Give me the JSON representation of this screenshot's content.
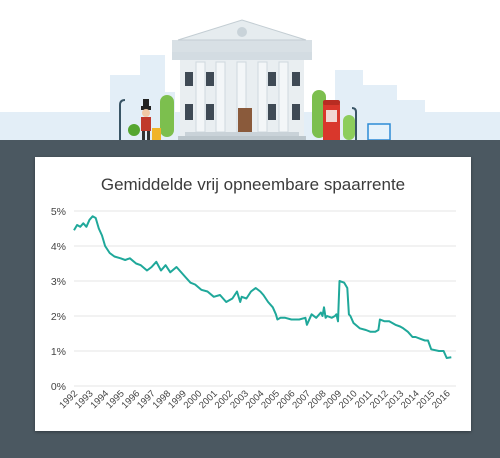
{
  "chart_data": {
    "type": "line",
    "title": "Gemiddelde vrij opneembare spaarrente",
    "xlabel": "",
    "ylabel": "",
    "ylim": [
      0,
      5
    ],
    "xlim": [
      1992,
      2016.6
    ],
    "y_ticks": [
      "0%",
      "1%",
      "2%",
      "3%",
      "4%",
      "5%"
    ],
    "x_ticks": [
      "1992",
      "1993",
      "1994",
      "1995",
      "1996",
      "1997",
      "1998",
      "1999",
      "2000",
      "2001",
      "2002",
      "2003",
      "2004",
      "2005",
      "2006",
      "2007",
      "2008",
      "2009",
      "2010",
      "2011",
      "2012",
      "2013",
      "2014",
      "2015",
      "2016"
    ],
    "grid": "horizontal",
    "series": [
      {
        "color": "#1fa89a",
        "x": [
          1992.0,
          1992.2,
          1992.4,
          1992.6,
          1992.8,
          1993.0,
          1993.2,
          1993.4,
          1993.6,
          1993.8,
          1994.0,
          1994.3,
          1994.6,
          1995.0,
          1995.3,
          1995.6,
          1996.0,
          1996.3,
          1996.7,
          1997.0,
          1997.3,
          1997.6,
          1997.9,
          1998.2,
          1998.6,
          1999.0,
          1999.2,
          1999.5,
          1999.8,
          2000.2,
          2000.6,
          2001.0,
          2001.4,
          2001.8,
          2002.2,
          2002.5,
          2002.7,
          2002.8,
          2003.1,
          2003.4,
          2003.7,
          2004.0,
          2004.2,
          2004.5,
          2004.8,
          2005.0,
          2005.1,
          2005.3,
          2005.6,
          2006.0,
          2006.5,
          2006.9,
          2007.0,
          2007.3,
          2007.6,
          2007.9,
          2008.0,
          2008.1,
          2008.2,
          2008.3,
          2008.6,
          2008.8,
          2008.9,
          2009.0,
          2009.1,
          2009.4,
          2009.6,
          2009.7,
          2009.8,
          2010.0,
          2010.4,
          2010.8,
          2011.1,
          2011.4,
          2011.6,
          2011.7,
          2012.0,
          2012.3,
          2012.7,
          2013.0,
          2013.2,
          2013.5,
          2013.8,
          2014.0,
          2014.3,
          2014.6,
          2014.8,
          2015.0,
          2015.5,
          2015.8,
          2016.0,
          2016.3
        ],
        "y": [
          4.45,
          4.6,
          4.55,
          4.65,
          4.55,
          4.75,
          4.85,
          4.8,
          4.5,
          4.3,
          4.0,
          3.8,
          3.7,
          3.65,
          3.6,
          3.65,
          3.5,
          3.45,
          3.3,
          3.4,
          3.55,
          3.3,
          3.45,
          3.25,
          3.4,
          3.2,
          3.1,
          2.95,
          2.9,
          2.75,
          2.7,
          2.55,
          2.6,
          2.4,
          2.5,
          2.7,
          2.4,
          2.55,
          2.5,
          2.7,
          2.8,
          2.7,
          2.6,
          2.4,
          2.25,
          2.05,
          1.9,
          1.95,
          1.95,
          1.9,
          1.9,
          1.95,
          1.75,
          2.05,
          1.95,
          2.1,
          2.0,
          2.25,
          1.95,
          2.0,
          1.95,
          2.0,
          2.05,
          1.85,
          3.0,
          2.95,
          2.8,
          2.05,
          2.0,
          1.8,
          1.65,
          1.6,
          1.55,
          1.55,
          1.6,
          1.9,
          1.85,
          1.85,
          1.75,
          1.7,
          1.65,
          1.55,
          1.4,
          1.4,
          1.35,
          1.3,
          1.3,
          1.05,
          1.0,
          1.0,
          0.8,
          0.82
        ]
      }
    ]
  }
}
